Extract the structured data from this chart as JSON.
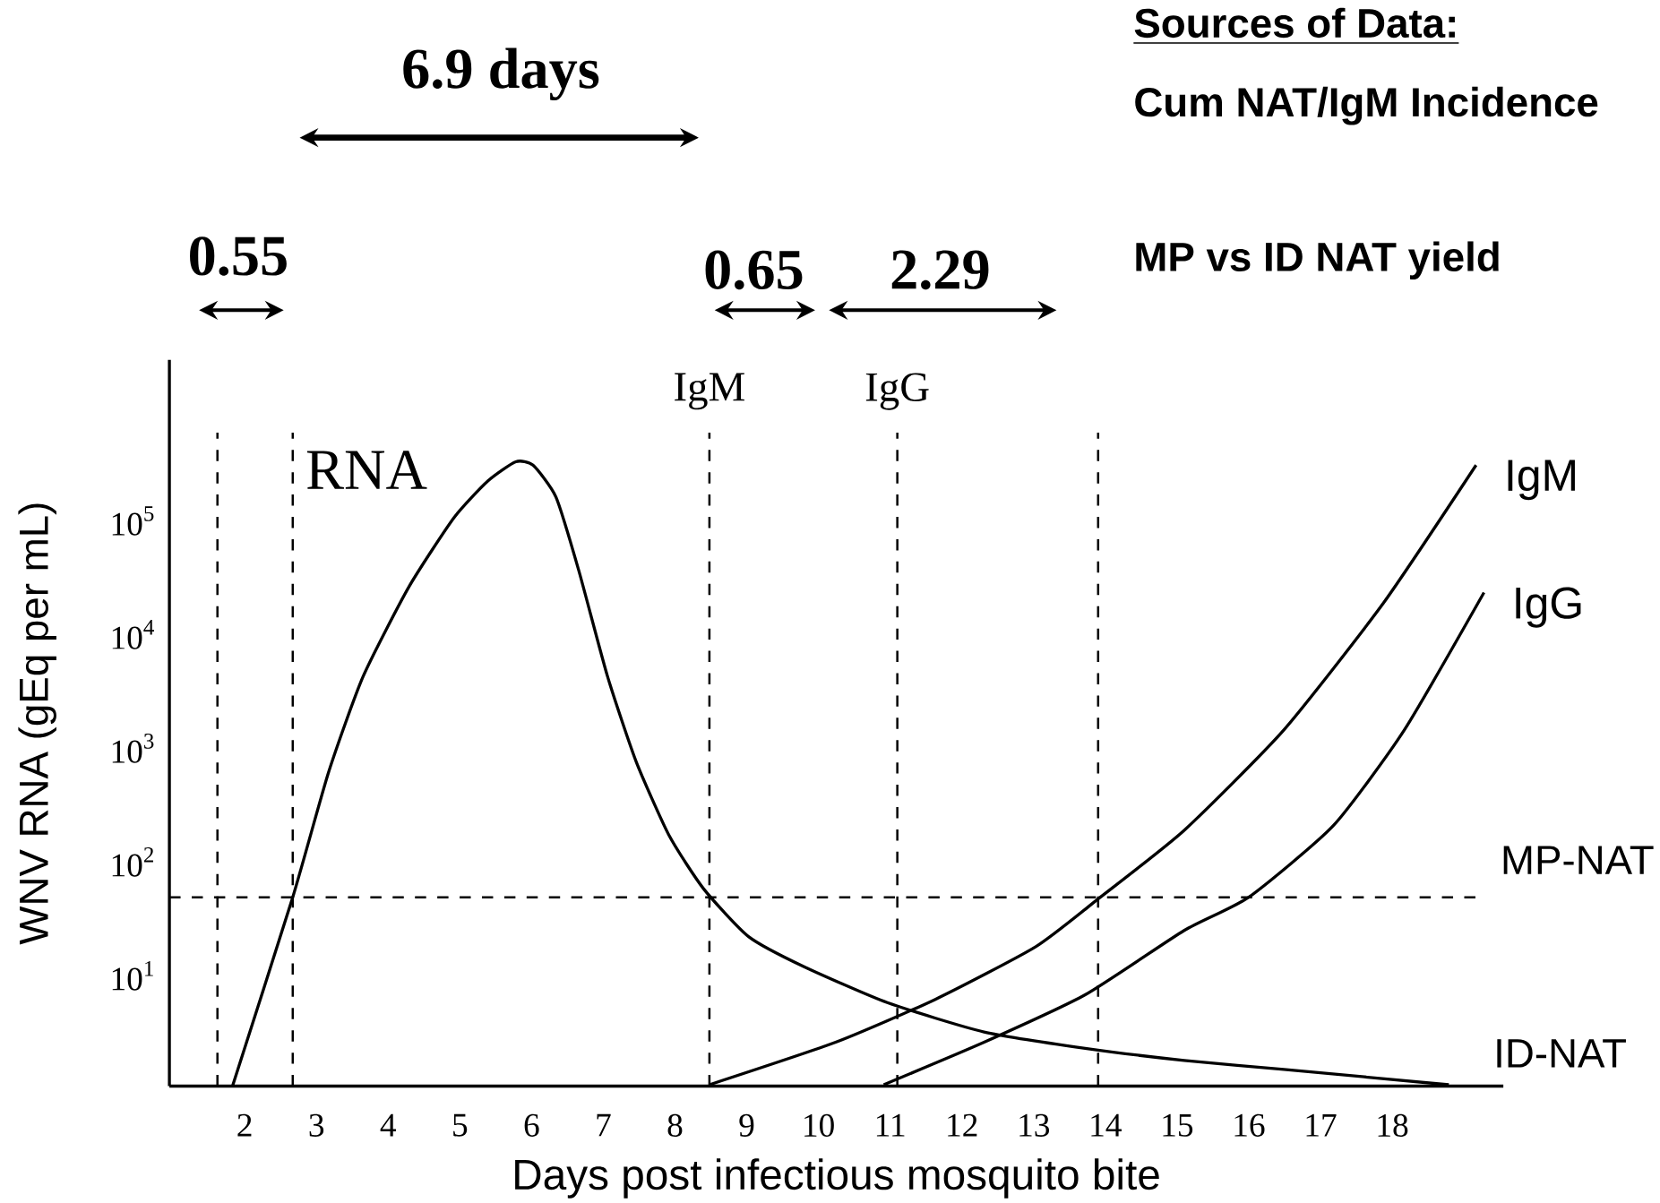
{
  "chart_data": {
    "type": "line",
    "xlabel": "Days post infectious mosquito bite",
    "ylabel": "WNV RNA (gEq per mL)",
    "log": "y",
    "xlim": [
      0.95,
      19.55
    ],
    "ylim": [
      1.07,
      2600000
    ],
    "xticks": [
      2,
      3,
      4,
      5,
      6,
      7,
      8,
      9,
      10,
      11,
      12,
      13,
      14,
      15,
      16,
      17,
      18
    ],
    "yticks": [
      {
        "value": 10,
        "label": "10$^{1}$"
      },
      {
        "value": 100,
        "label": "10$^{2}$"
      },
      {
        "value": 1000,
        "label": "10$^{3}$"
      },
      {
        "value": 10000,
        "label": "10$^{4}$"
      },
      {
        "value": 100000,
        "label": "10$^{5}$"
      }
    ],
    "line_style": "solid",
    "series": [
      {
        "name": "RNA",
        "color": "#000000",
        "x": [
          1.83,
          2.67,
          3.17,
          3.65,
          4.29,
          4.92,
          5.39,
          5.78,
          6.02,
          6.34,
          6.66,
          7.06,
          7.46,
          7.92,
          8.4,
          9.03,
          9.8,
          10.96,
          12.31,
          13.72,
          15.1,
          16.49,
          18.79
        ],
        "values": [
          1.07,
          49,
          617,
          4266,
          26300,
          107000,
          224000,
          331000,
          309000,
          162000,
          36300,
          4266,
          759,
          170,
          58,
          22,
          12,
          5.8,
          3.2,
          2.3,
          1.8,
          1.5,
          1.1
        ]
      },
      {
        "name": "IgM",
        "color": "#000000",
        "x": [
          8.48,
          10.24,
          11.63,
          13.03,
          13.93,
          15.1,
          16.49,
          17.88,
          19.17
        ],
        "values": [
          1.1,
          2.6,
          6.2,
          18,
          49,
          190,
          1450,
          19000,
          309000
        ]
      },
      {
        "name": "IgG",
        "color": "#000000",
        "x": [
          10.91,
          12.31,
          13.72,
          15.1,
          16.0,
          17.18,
          18.17,
          19.28
        ],
        "values": [
          1.1,
          2.6,
          6.8,
          25,
          49,
          209,
          1450,
          23400
        ]
      }
    ],
    "ref_lines": [
      {
        "axis": "y",
        "value": 49,
        "label": "MP-NAT",
        "line_style": "dashed"
      },
      {
        "axis": "x",
        "value": 1.62,
        "label": null,
        "line_style": "dashed"
      },
      {
        "axis": "x",
        "value": 2.67,
        "label": null,
        "line_style": "dashed"
      },
      {
        "axis": "x",
        "value": 8.48,
        "label": "IgM",
        "line_style": "dashed"
      },
      {
        "axis": "x",
        "value": 11.1,
        "label": "IgG",
        "line_style": "dashed"
      },
      {
        "axis": "x",
        "value": 13.9,
        "label": null,
        "line_style": "dashed"
      }
    ],
    "annotations": [
      "Sources of Data:",
      "Cum NAT/IgM Incidence",
      "MP vs ID NAT yield",
      "6.9 days",
      "0.55",
      "0.65",
      "2.29",
      "ID-NAT"
    ]
  }
}
